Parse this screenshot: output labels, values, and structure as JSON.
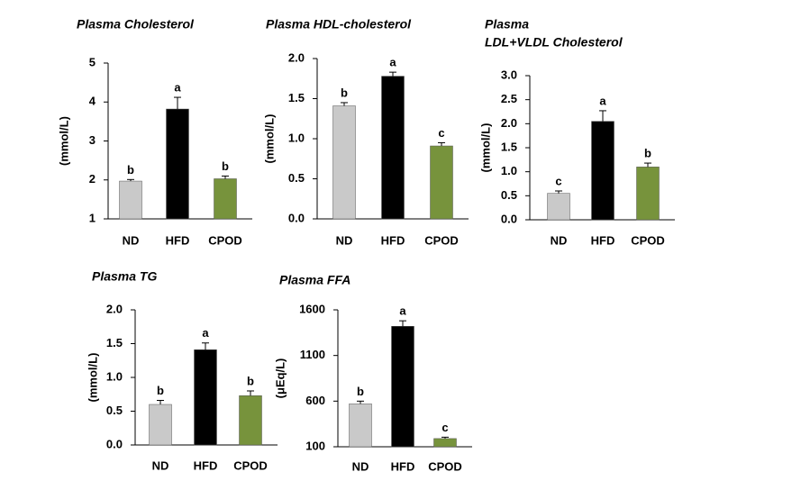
{
  "chart_data": [
    {
      "type": "bar",
      "title": "Plasma Cholesterol",
      "ylabel": "(mmol/L)",
      "categories": [
        "ND",
        "HFD",
        "CPOD"
      ],
      "values": [
        1.97,
        3.82,
        2.03
      ],
      "errors": [
        0.04,
        0.3,
        0.07
      ],
      "letters": [
        "b",
        "a",
        "b"
      ],
      "colors": [
        "#c9c9c9",
        "#000000",
        "#77933c"
      ],
      "ylim": [
        1,
        5
      ],
      "yticks": [
        1,
        2,
        3,
        4,
        5
      ]
    },
    {
      "type": "bar",
      "title": "Plasma HDL-cholesterol",
      "ylabel": "(mmol/L)",
      "categories": [
        "ND",
        "HFD",
        "CPOD"
      ],
      "values": [
        1.41,
        1.78,
        0.91
      ],
      "errors": [
        0.04,
        0.05,
        0.04
      ],
      "letters": [
        "b",
        "a",
        "c"
      ],
      "colors": [
        "#c9c9c9",
        "#000000",
        "#77933c"
      ],
      "ylim": [
        0,
        2
      ],
      "yticks": [
        {
          "value": 0,
          "label": "0.0"
        },
        0.5,
        {
          "value": 1,
          "label": "1.0"
        },
        1.5,
        {
          "value": 2,
          "label": "2.0"
        }
      ]
    },
    {
      "type": "bar",
      "title": [
        "Plasma",
        "LDL+VLDL Cholesterol"
      ],
      "ylabel": "(mmol/L)",
      "categories": [
        "ND",
        "HFD",
        "CPOD"
      ],
      "values": [
        0.55,
        2.05,
        1.1
      ],
      "errors": [
        0.05,
        0.22,
        0.08
      ],
      "letters": [
        "c",
        "a",
        "b"
      ],
      "colors": [
        "#c9c9c9",
        "#000000",
        "#77933c"
      ],
      "ylim": [
        0,
        3
      ],
      "yticks": [
        {
          "value": 0,
          "label": "0.0"
        },
        0.5,
        {
          "value": 1,
          "label": "1.0"
        },
        1.5,
        {
          "value": 2,
          "label": "2.0"
        },
        2.5,
        {
          "value": 3,
          "label": "3.0"
        }
      ]
    },
    {
      "type": "bar",
      "title": "Plasma TG",
      "ylabel": "(mmol/L)",
      "categories": [
        "ND",
        "HFD",
        "CPOD"
      ],
      "values": [
        0.6,
        1.41,
        0.73
      ],
      "errors": [
        0.06,
        0.1,
        0.07
      ],
      "letters": [
        "b",
        "a",
        "b"
      ],
      "colors": [
        "#c9c9c9",
        "#000000",
        "#77933c"
      ],
      "ylim": [
        0,
        2
      ],
      "yticks": [
        {
          "value": 0,
          "label": "0.0"
        },
        0.5,
        {
          "value": 1,
          "label": "1.0"
        },
        1.5,
        {
          "value": 2,
          "label": "2.0"
        }
      ]
    },
    {
      "type": "bar",
      "title": "Plasma FFA",
      "ylabel": "(μEq/L)",
      "categories": [
        "ND",
        "HFD",
        "CPOD"
      ],
      "values": [
        570,
        1420,
        190
      ],
      "errors": [
        30,
        60,
        15
      ],
      "letters": [
        "b",
        "a",
        "c"
      ],
      "colors": [
        "#c9c9c9",
        "#000000",
        "#77933c"
      ],
      "ylim": [
        100,
        1600
      ],
      "yticks": [
        100,
        600,
        1100,
        1600
      ]
    }
  ]
}
